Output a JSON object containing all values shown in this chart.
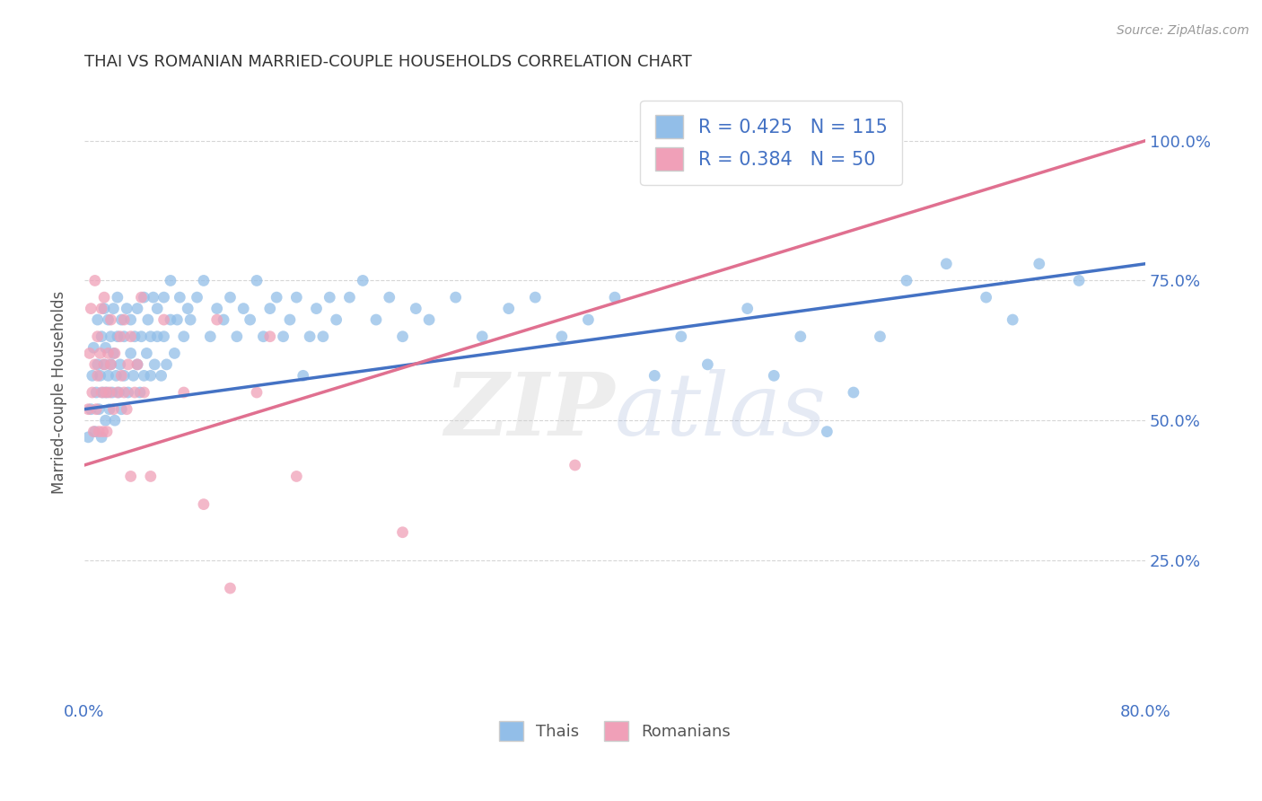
{
  "title": "THAI VS ROMANIAN MARRIED-COUPLE HOUSEHOLDS CORRELATION CHART",
  "source": "Source: ZipAtlas.com",
  "ylabel": "Married-couple Households",
  "x_min": 0.0,
  "x_max": 0.8,
  "y_min": 0.0,
  "y_max": 1.1,
  "y_ticks": [
    0.25,
    0.5,
    0.75,
    1.0
  ],
  "y_tick_labels": [
    "25.0%",
    "50.0%",
    "75.0%",
    "100.0%"
  ],
  "x_ticks": [
    0.0,
    0.1,
    0.2,
    0.3,
    0.4,
    0.5,
    0.6,
    0.7,
    0.8
  ],
  "x_tick_labels": [
    "0.0%",
    "",
    "",
    "",
    "",
    "",
    "",
    "",
    "80.0%"
  ],
  "thai_color": "#92BEE8",
  "romanian_color": "#F0A0B8",
  "thai_line_color": "#4472C4",
  "romanian_line_color": "#E07090",
  "thai_R": 0.425,
  "thai_N": 115,
  "romanian_R": 0.384,
  "romanian_N": 50,
  "watermark_zip": "ZIP",
  "watermark_atlas": "atlas",
  "legend_label_thai": "Thais",
  "legend_label_romanian": "Romanians",
  "thai_line_x0": 0.0,
  "thai_line_y0": 0.52,
  "thai_line_x1": 0.8,
  "thai_line_y1": 0.78,
  "romanian_line_x0": 0.0,
  "romanian_line_y0": 0.42,
  "romanian_line_x1": 0.8,
  "romanian_line_y1": 1.0,
  "thai_points": [
    [
      0.003,
      0.47
    ],
    [
      0.005,
      0.52
    ],
    [
      0.006,
      0.58
    ],
    [
      0.007,
      0.63
    ],
    [
      0.008,
      0.48
    ],
    [
      0.009,
      0.55
    ],
    [
      0.01,
      0.6
    ],
    [
      0.01,
      0.68
    ],
    [
      0.011,
      0.52
    ],
    [
      0.012,
      0.58
    ],
    [
      0.013,
      0.47
    ],
    [
      0.013,
      0.65
    ],
    [
      0.014,
      0.55
    ],
    [
      0.015,
      0.6
    ],
    [
      0.015,
      0.7
    ],
    [
      0.016,
      0.5
    ],
    [
      0.016,
      0.63
    ],
    [
      0.017,
      0.55
    ],
    [
      0.018,
      0.58
    ],
    [
      0.018,
      0.68
    ],
    [
      0.019,
      0.52
    ],
    [
      0.02,
      0.6
    ],
    [
      0.02,
      0.65
    ],
    [
      0.021,
      0.55
    ],
    [
      0.022,
      0.62
    ],
    [
      0.022,
      0.7
    ],
    [
      0.023,
      0.5
    ],
    [
      0.024,
      0.58
    ],
    [
      0.025,
      0.65
    ],
    [
      0.025,
      0.72
    ],
    [
      0.026,
      0.55
    ],
    [
      0.027,
      0.6
    ],
    [
      0.028,
      0.68
    ],
    [
      0.028,
      0.52
    ],
    [
      0.03,
      0.58
    ],
    [
      0.03,
      0.65
    ],
    [
      0.032,
      0.7
    ],
    [
      0.033,
      0.55
    ],
    [
      0.035,
      0.62
    ],
    [
      0.035,
      0.68
    ],
    [
      0.037,
      0.58
    ],
    [
      0.038,
      0.65
    ],
    [
      0.04,
      0.6
    ],
    [
      0.04,
      0.7
    ],
    [
      0.042,
      0.55
    ],
    [
      0.043,
      0.65
    ],
    [
      0.045,
      0.58
    ],
    [
      0.045,
      0.72
    ],
    [
      0.047,
      0.62
    ],
    [
      0.048,
      0.68
    ],
    [
      0.05,
      0.58
    ],
    [
      0.05,
      0.65
    ],
    [
      0.052,
      0.72
    ],
    [
      0.053,
      0.6
    ],
    [
      0.055,
      0.65
    ],
    [
      0.055,
      0.7
    ],
    [
      0.058,
      0.58
    ],
    [
      0.06,
      0.65
    ],
    [
      0.06,
      0.72
    ],
    [
      0.062,
      0.6
    ],
    [
      0.065,
      0.68
    ],
    [
      0.065,
      0.75
    ],
    [
      0.068,
      0.62
    ],
    [
      0.07,
      0.68
    ],
    [
      0.072,
      0.72
    ],
    [
      0.075,
      0.65
    ],
    [
      0.078,
      0.7
    ],
    [
      0.08,
      0.68
    ],
    [
      0.085,
      0.72
    ],
    [
      0.09,
      0.75
    ],
    [
      0.095,
      0.65
    ],
    [
      0.1,
      0.7
    ],
    [
      0.105,
      0.68
    ],
    [
      0.11,
      0.72
    ],
    [
      0.115,
      0.65
    ],
    [
      0.12,
      0.7
    ],
    [
      0.125,
      0.68
    ],
    [
      0.13,
      0.75
    ],
    [
      0.135,
      0.65
    ],
    [
      0.14,
      0.7
    ],
    [
      0.145,
      0.72
    ],
    [
      0.15,
      0.65
    ],
    [
      0.155,
      0.68
    ],
    [
      0.16,
      0.72
    ],
    [
      0.165,
      0.58
    ],
    [
      0.17,
      0.65
    ],
    [
      0.175,
      0.7
    ],
    [
      0.18,
      0.65
    ],
    [
      0.185,
      0.72
    ],
    [
      0.19,
      0.68
    ],
    [
      0.2,
      0.72
    ],
    [
      0.21,
      0.75
    ],
    [
      0.22,
      0.68
    ],
    [
      0.23,
      0.72
    ],
    [
      0.24,
      0.65
    ],
    [
      0.25,
      0.7
    ],
    [
      0.26,
      0.68
    ],
    [
      0.28,
      0.72
    ],
    [
      0.3,
      0.65
    ],
    [
      0.32,
      0.7
    ],
    [
      0.34,
      0.72
    ],
    [
      0.36,
      0.65
    ],
    [
      0.38,
      0.68
    ],
    [
      0.4,
      0.72
    ],
    [
      0.43,
      0.58
    ],
    [
      0.45,
      0.65
    ],
    [
      0.47,
      0.6
    ],
    [
      0.5,
      0.7
    ],
    [
      0.52,
      0.58
    ],
    [
      0.54,
      0.65
    ],
    [
      0.56,
      0.48
    ],
    [
      0.58,
      0.55
    ],
    [
      0.6,
      0.65
    ],
    [
      0.62,
      0.75
    ],
    [
      0.65,
      0.78
    ],
    [
      0.68,
      0.72
    ],
    [
      0.7,
      0.68
    ],
    [
      0.72,
      0.78
    ],
    [
      0.75,
      0.75
    ]
  ],
  "romanian_points": [
    [
      0.003,
      0.52
    ],
    [
      0.004,
      0.62
    ],
    [
      0.005,
      0.7
    ],
    [
      0.006,
      0.55
    ],
    [
      0.007,
      0.48
    ],
    [
      0.008,
      0.6
    ],
    [
      0.008,
      0.75
    ],
    [
      0.009,
      0.52
    ],
    [
      0.01,
      0.65
    ],
    [
      0.01,
      0.58
    ],
    [
      0.011,
      0.48
    ],
    [
      0.012,
      0.62
    ],
    [
      0.013,
      0.55
    ],
    [
      0.013,
      0.7
    ],
    [
      0.014,
      0.48
    ],
    [
      0.015,
      0.6
    ],
    [
      0.015,
      0.72
    ],
    [
      0.016,
      0.55
    ],
    [
      0.017,
      0.48
    ],
    [
      0.018,
      0.62
    ],
    [
      0.019,
      0.55
    ],
    [
      0.02,
      0.6
    ],
    [
      0.02,
      0.68
    ],
    [
      0.022,
      0.52
    ],
    [
      0.023,
      0.62
    ],
    [
      0.025,
      0.55
    ],
    [
      0.027,
      0.65
    ],
    [
      0.028,
      0.58
    ],
    [
      0.03,
      0.55
    ],
    [
      0.03,
      0.68
    ],
    [
      0.032,
      0.52
    ],
    [
      0.033,
      0.6
    ],
    [
      0.035,
      0.4
    ],
    [
      0.035,
      0.65
    ],
    [
      0.038,
      0.55
    ],
    [
      0.04,
      0.6
    ],
    [
      0.043,
      0.72
    ],
    [
      0.045,
      0.55
    ],
    [
      0.05,
      0.4
    ],
    [
      0.06,
      0.68
    ],
    [
      0.075,
      0.55
    ],
    [
      0.09,
      0.35
    ],
    [
      0.1,
      0.68
    ],
    [
      0.11,
      0.2
    ],
    [
      0.13,
      0.55
    ],
    [
      0.14,
      0.65
    ],
    [
      0.16,
      0.4
    ],
    [
      0.24,
      0.3
    ],
    [
      0.37,
      0.42
    ],
    [
      0.6,
      1.0
    ]
  ]
}
